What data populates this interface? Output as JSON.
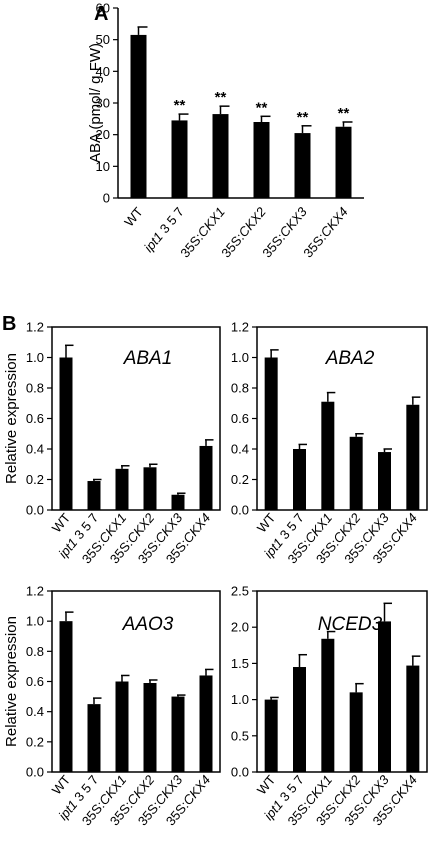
{
  "panels": [
    {
      "id": "A",
      "type": "bar",
      "ylabel": "ABA (pmol/ g FW)",
      "gene": "",
      "categories": [
        {
          "parts": [
            {
              "t": "WT",
              "i": false
            }
          ]
        },
        {
          "parts": [
            {
              "t": "ipt1",
              "i": true
            },
            {
              "t": " 3 5 7",
              "i": false
            }
          ]
        },
        {
          "parts": [
            {
              "t": "35S:",
              "i": false
            },
            {
              "t": "CKX1",
              "i": true
            }
          ]
        },
        {
          "parts": [
            {
              "t": "35S:",
              "i": false
            },
            {
              "t": "CKX2",
              "i": true
            }
          ]
        },
        {
          "parts": [
            {
              "t": "35S:",
              "i": false
            },
            {
              "t": "CKX3",
              "i": true
            }
          ]
        },
        {
          "parts": [
            {
              "t": "35S:",
              "i": false
            },
            {
              "t": "CKX4",
              "i": true
            }
          ]
        }
      ],
      "values": [
        51.5,
        24.5,
        26.5,
        24,
        20.5,
        22.5
      ],
      "errors": [
        2.5,
        2,
        2.5,
        1.8,
        2.3,
        1.5
      ],
      "significance": [
        "",
        "**",
        "**",
        "**",
        "**",
        "**"
      ],
      "ylim": [
        0,
        60
      ],
      "yticks": [
        "0",
        "10",
        "20",
        "30",
        "40",
        "50",
        "60"
      ],
      "frame": "axes"
    },
    {
      "id": "B",
      "type": "bar",
      "ylabel": "Relative expression",
      "gene": "ABA1",
      "categories": [
        {
          "parts": [
            {
              "t": "WT",
              "i": false
            }
          ]
        },
        {
          "parts": [
            {
              "t": "ipt1",
              "i": true
            },
            {
              "t": " 3 5 7",
              "i": false
            }
          ]
        },
        {
          "parts": [
            {
              "t": "35S:",
              "i": false
            },
            {
              "t": "CKX1",
              "i": true
            }
          ]
        },
        {
          "parts": [
            {
              "t": "35S:",
              "i": false
            },
            {
              "t": "CKX2",
              "i": true
            }
          ]
        },
        {
          "parts": [
            {
              "t": "35S:",
              "i": false
            },
            {
              "t": "CKX3",
              "i": true
            }
          ]
        },
        {
          "parts": [
            {
              "t": "35S:",
              "i": false
            },
            {
              "t": "CKX4",
              "i": true
            }
          ]
        }
      ],
      "values": [
        1.0,
        0.19,
        0.27,
        0.28,
        0.1,
        0.42
      ],
      "errors": [
        0.08,
        0.01,
        0.02,
        0.02,
        0.01,
        0.04
      ],
      "significance": [
        "",
        "",
        "",
        "",
        "",
        ""
      ],
      "ylim": [
        0,
        1.2
      ],
      "yticks": [
        "0.0",
        "0.2",
        "0.4",
        "0.6",
        "0.8",
        "1.0",
        "1.2"
      ],
      "frame": "box"
    },
    {
      "id": "",
      "type": "bar",
      "ylabel": "",
      "gene": "ABA2",
      "categories": [
        {
          "parts": [
            {
              "t": "WT",
              "i": false
            }
          ]
        },
        {
          "parts": [
            {
              "t": "ipt1",
              "i": true
            },
            {
              "t": " 3 5 7",
              "i": false
            }
          ]
        },
        {
          "parts": [
            {
              "t": "35S:",
              "i": false
            },
            {
              "t": "CKX1",
              "i": true
            }
          ]
        },
        {
          "parts": [
            {
              "t": "35S:",
              "i": false
            },
            {
              "t": "CKX2",
              "i": true
            }
          ]
        },
        {
          "parts": [
            {
              "t": "35S:",
              "i": false
            },
            {
              "t": "CKX3",
              "i": true
            }
          ]
        },
        {
          "parts": [
            {
              "t": "35S:",
              "i": false
            },
            {
              "t": "CKX4",
              "i": true
            }
          ]
        }
      ],
      "values": [
        1.0,
        0.4,
        0.71,
        0.48,
        0.38,
        0.69
      ],
      "errors": [
        0.05,
        0.03,
        0.06,
        0.02,
        0.02,
        0.05
      ],
      "significance": [
        "",
        "",
        "",
        "",
        "",
        ""
      ],
      "ylim": [
        0,
        1.2
      ],
      "yticks": [
        "0.0",
        "0.2",
        "0.4",
        "0.6",
        "0.8",
        "1.0",
        "1.2"
      ],
      "frame": "box"
    },
    {
      "id": "",
      "type": "bar",
      "ylabel": "Relative expression",
      "gene": "AAO3",
      "categories": [
        {
          "parts": [
            {
              "t": "WT",
              "i": false
            }
          ]
        },
        {
          "parts": [
            {
              "t": "ipt1",
              "i": true
            },
            {
              "t": " 3 5 7",
              "i": false
            }
          ]
        },
        {
          "parts": [
            {
              "t": "35S:",
              "i": false
            },
            {
              "t": "CKX1",
              "i": true
            }
          ]
        },
        {
          "parts": [
            {
              "t": "35S:",
              "i": false
            },
            {
              "t": "CKX2",
              "i": true
            }
          ]
        },
        {
          "parts": [
            {
              "t": "35S:",
              "i": false
            },
            {
              "t": "CKX3",
              "i": true
            }
          ]
        },
        {
          "parts": [
            {
              "t": "35S:",
              "i": false
            },
            {
              "t": "CKX4",
              "i": true
            }
          ]
        }
      ],
      "values": [
        1.0,
        0.45,
        0.6,
        0.59,
        0.5,
        0.64
      ],
      "errors": [
        0.06,
        0.04,
        0.04,
        0.02,
        0.01,
        0.04
      ],
      "significance": [
        "",
        "",
        "",
        "",
        "",
        ""
      ],
      "ylim": [
        0,
        1.2
      ],
      "yticks": [
        "0.0",
        "0.2",
        "0.4",
        "0.6",
        "0.8",
        "1.0",
        "1.2"
      ],
      "frame": "box"
    },
    {
      "id": "",
      "type": "bar",
      "ylabel": "",
      "gene": "NCED3",
      "categories": [
        {
          "parts": [
            {
              "t": "WT",
              "i": false
            }
          ]
        },
        {
          "parts": [
            {
              "t": "ipt1",
              "i": true
            },
            {
              "t": " 3 5 7",
              "i": false
            }
          ]
        },
        {
          "parts": [
            {
              "t": "35S:",
              "i": false
            },
            {
              "t": "CKX1",
              "i": true
            }
          ]
        },
        {
          "parts": [
            {
              "t": "35S:",
              "i": false
            },
            {
              "t": "CKX2",
              "i": true
            }
          ]
        },
        {
          "parts": [
            {
              "t": "35S:",
              "i": false
            },
            {
              "t": "CKX3",
              "i": true
            }
          ]
        },
        {
          "parts": [
            {
              "t": "35S:",
              "i": false
            },
            {
              "t": "CKX4",
              "i": true
            }
          ]
        }
      ],
      "values": [
        1.0,
        1.45,
        1.84,
        1.1,
        2.08,
        1.47
      ],
      "errors": [
        0.03,
        0.17,
        0.1,
        0.12,
        0.25,
        0.13
      ],
      "significance": [
        "",
        "",
        "",
        "",
        "",
        ""
      ],
      "ylim": [
        0,
        2.5
      ],
      "yticks": [
        "0.0",
        "0.5",
        "1.0",
        "1.5",
        "2.0",
        "2.5"
      ],
      "frame": "box"
    }
  ],
  "chart_data": [
    {
      "type": "bar",
      "categories": [
        "WT",
        "ipt1 3 5 7",
        "35S:CKX1",
        "35S:CKX2",
        "35S:CKX3",
        "35S:CKX4"
      ],
      "values": [
        51.5,
        24.5,
        26.5,
        24,
        20.5,
        22.5
      ],
      "errors": [
        2.5,
        2,
        2.5,
        1.8,
        2.3,
        1.5
      ],
      "annotations": [
        "",
        "**",
        "**",
        "**",
        "**",
        "**"
      ],
      "ylabel": "ABA (pmol/ g FW)",
      "ylim": [
        0,
        60
      ]
    },
    {
      "type": "bar",
      "categories": [
        "WT",
        "ipt1 3 5 7",
        "35S:CKX1",
        "35S:CKX2",
        "35S:CKX3",
        "35S:CKX4"
      ],
      "values": [
        1.0,
        0.19,
        0.27,
        0.28,
        0.1,
        0.42
      ],
      "errors": [
        0.08,
        0.01,
        0.02,
        0.02,
        0.01,
        0.04
      ],
      "title": "ABA1",
      "ylabel": "Relative expression",
      "ylim": [
        0,
        1.2
      ]
    },
    {
      "type": "bar",
      "categories": [
        "WT",
        "ipt1 3 5 7",
        "35S:CKX1",
        "35S:CKX2",
        "35S:CKX3",
        "35S:CKX4"
      ],
      "values": [
        1.0,
        0.4,
        0.71,
        0.48,
        0.38,
        0.69
      ],
      "errors": [
        0.05,
        0.03,
        0.06,
        0.02,
        0.02,
        0.05
      ],
      "title": "ABA2",
      "ylim": [
        0,
        1.2
      ]
    },
    {
      "type": "bar",
      "categories": [
        "WT",
        "ipt1 3 5 7",
        "35S:CKX1",
        "35S:CKX2",
        "35S:CKX3",
        "35S:CKX4"
      ],
      "values": [
        1.0,
        0.45,
        0.6,
        0.59,
        0.5,
        0.64
      ],
      "errors": [
        0.06,
        0.04,
        0.04,
        0.02,
        0.01,
        0.04
      ],
      "title": "AAO3",
      "ylabel": "Relative expression",
      "ylim": [
        0,
        1.2
      ]
    },
    {
      "type": "bar",
      "categories": [
        "WT",
        "ipt1 3 5 7",
        "35S:CKX1",
        "35S:CKX2",
        "35S:CKX3",
        "35S:CKX4"
      ],
      "values": [
        1.0,
        1.45,
        1.84,
        1.1,
        2.08,
        1.47
      ],
      "errors": [
        0.03,
        0.17,
        0.1,
        0.12,
        0.25,
        0.13
      ],
      "title": "NCED3",
      "ylim": [
        0,
        2.5
      ]
    }
  ]
}
